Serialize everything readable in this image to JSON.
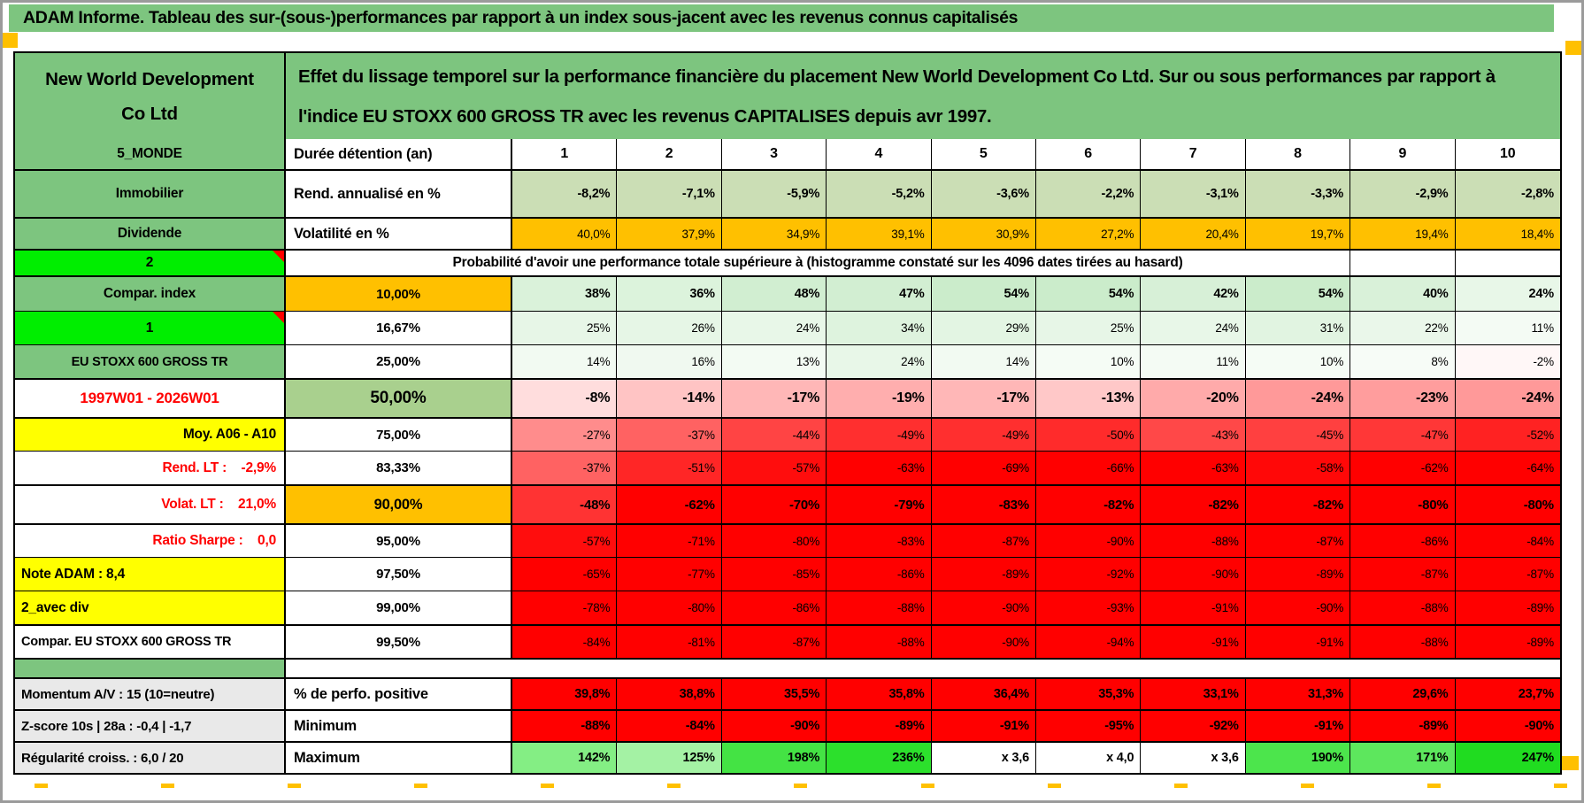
{
  "title_bar": {
    "text": "ADAM Informe. Tableau des sur-(sous-)performances par rapport à un index sous-jacent avec les revenus connus capitalisés"
  },
  "palette": {
    "band_green": "#7dc57f",
    "bright_green": "#00ee00",
    "orange": "#ffc000",
    "yellow": "#ffff00",
    "red": "#ff0000",
    "sage": "#cbdeb5",
    "grey_label": "#e9e9e9",
    "p50_green": "#a9d08e"
  },
  "header": {
    "company_line1": "New World Development",
    "company_line2": "Co Ltd",
    "description": "Effet du lissage temporel sur la performance financière du placement New World Development Co Ltd. Sur ou sous performances par rapport à l'indice EU STOXX 600 GROSS TR avec les revenus CAPITALISES depuis avr 1997."
  },
  "table": {
    "rows": [
      {
        "kind": "colhead",
        "label": "5_MONDE",
        "label_bg": "#7dc57f",
        "head": "Durée détention (an)",
        "cells": [
          "1",
          "2",
          "3",
          "4",
          "5",
          "6",
          "7",
          "8",
          "9",
          "10"
        ],
        "cell_colors": [
          "#ffffff",
          "#ffffff",
          "#ffffff",
          "#ffffff",
          "#ffffff",
          "#ffffff",
          "#ffffff",
          "#ffffff",
          "#ffffff",
          "#ffffff"
        ]
      },
      {
        "kind": "rend",
        "label": "Immobilier",
        "label_bg": "#7dc57f",
        "head": "Rend. annualisé en %",
        "cells": [
          "-8,2%",
          "-7,1%",
          "-5,9%",
          "-5,2%",
          "-3,6%",
          "-2,2%",
          "-3,1%",
          "-3,3%",
          "-2,9%",
          "-2,8%"
        ],
        "cell_colors": [
          "#cbdeb5",
          "#cbdeb5",
          "#cbdeb5",
          "#cbdeb5",
          "#cbdeb5",
          "#cbdeb5",
          "#cbdeb5",
          "#cbdeb5",
          "#cbdeb5",
          "#cbdeb5"
        ]
      },
      {
        "kind": "volat",
        "label": "Dividende",
        "label_bg": "#7dc57f",
        "head": "Volatilité en %",
        "cells": [
          "40,0%",
          "37,9%",
          "34,9%",
          "39,1%",
          "30,9%",
          "27,2%",
          "20,4%",
          "19,7%",
          "19,4%",
          "18,4%"
        ],
        "cell_colors": [
          "#ffc000",
          "#ffc000",
          "#ffc000",
          "#ffc000",
          "#ffc000",
          "#ffc000",
          "#ffc000",
          "#ffc000",
          "#ffc000",
          "#ffc000"
        ]
      },
      {
        "kind": "proba",
        "label": "2",
        "label_bg": "#00ee00",
        "corner": true,
        "merged_text": "Probabilité d'avoir une performance totale supérieure à (histogramme constaté sur les 4096 dates tirées au hasard)"
      },
      {
        "kind": "p10",
        "label": "Compar. index",
        "label_bg": "#7dc57f",
        "head": "10,00%",
        "head_bg": "#ffc000",
        "cells": [
          "38%",
          "36%",
          "48%",
          "47%",
          "54%",
          "54%",
          "42%",
          "54%",
          "40%",
          "24%"
        ],
        "cell_colors": [
          "#daf2da",
          "#dcf3dc",
          "#d1eed1",
          "#d2eed2",
          "#cbeccb",
          "#cbeccb",
          "#d7f0d7",
          "#cbeccb",
          "#d9f1d9",
          "#e8f7e8"
        ]
      },
      {
        "kind": "p1667",
        "label": "1",
        "label_bg": "#00ee00",
        "corner": true,
        "head": "16,67%",
        "cells": [
          "25%",
          "26%",
          "24%",
          "34%",
          "29%",
          "25%",
          "24%",
          "31%",
          "22%",
          "11%"
        ],
        "cell_colors": [
          "#e7f6e7",
          "#e6f6e6",
          "#e8f7e8",
          "#def3de",
          "#e3f5e3",
          "#e7f6e7",
          "#e8f7e8",
          "#e1f4e1",
          "#eaf7ea",
          "#f4fbf4"
        ]
      },
      {
        "kind": "p25",
        "label": "EU STOXX 600 GROSS TR",
        "label_bg": "#7dc57f",
        "head": "25,00%",
        "cells": [
          "14%",
          "16%",
          "13%",
          "24%",
          "14%",
          "10%",
          "11%",
          "10%",
          "8%",
          "-2%"
        ],
        "cell_colors": [
          "#f2faf2",
          "#f0f9f0",
          "#f3fbf3",
          "#e8f7e8",
          "#f2faf2",
          "#f5fcf5",
          "#f4fbf4",
          "#f5fcf5",
          "#f7fcf7",
          "#fff7f7"
        ]
      },
      {
        "kind": "p50",
        "label": "1997W01 - 2026W01",
        "label_fg": "#ff0000",
        "head": "50,00%",
        "head_bg": "#a9d08e",
        "cells": [
          "-8%",
          "-14%",
          "-17%",
          "-19%",
          "-17%",
          "-13%",
          "-20%",
          "-24%",
          "-23%",
          "-24%"
        ],
        "cell_colors": [
          "#ffdddd",
          "#ffc4c4",
          "#ffb7b7",
          "#ffaeae",
          "#ffb7b7",
          "#ffc8c8",
          "#ffaaaa",
          "#ff9999",
          "#ff9d9d",
          "#ff9999"
        ]
      },
      {
        "kind": "p75",
        "label": "Moy. A06 - A10",
        "label_bg": "#ffff00",
        "label_align": "right",
        "head": "75,00%",
        "cells": [
          "-27%",
          "-37%",
          "-44%",
          "-49%",
          "-49%",
          "-50%",
          "-43%",
          "-45%",
          "-47%",
          "-52%"
        ],
        "cell_colors": [
          "#ff8c8c",
          "#ff6262",
          "#ff4444",
          "#ff2f2f",
          "#ff2f2f",
          "#ff2b2b",
          "#ff4848",
          "#ff4040",
          "#ff3737",
          "#ff2222"
        ]
      },
      {
        "kind": "p8333",
        "label": "Rend. LT :    -2,9%",
        "label_fg": "#ff0000",
        "label_align": "right",
        "head": "83,33%",
        "cells": [
          "-37%",
          "-51%",
          "-57%",
          "-63%",
          "-69%",
          "-66%",
          "-63%",
          "-58%",
          "-62%",
          "-64%"
        ],
        "cell_colors": [
          "#ff6262",
          "#ff2626",
          "#ff0d0d",
          "#ff0000",
          "#ff0000",
          "#ff0000",
          "#ff0000",
          "#ff0808",
          "#ff0000",
          "#ff0000"
        ]
      },
      {
        "kind": "p90",
        "label": "Volat. LT :    21,0%",
        "label_fg": "#ff0000",
        "label_align": "right",
        "head": "90,00%",
        "head_bg": "#ffc000",
        "cells": [
          "-48%",
          "-62%",
          "-70%",
          "-79%",
          "-83%",
          "-82%",
          "-82%",
          "-82%",
          "-80%",
          "-80%"
        ],
        "cell_colors": [
          "#ff3333",
          "#ff0000",
          "#ff0000",
          "#ff0000",
          "#ff0000",
          "#ff0000",
          "#ff0000",
          "#ff0000",
          "#ff0000",
          "#ff0000"
        ]
      },
      {
        "kind": "p95",
        "label": "Ratio Sharpe :    0,0",
        "label_fg": "#ff0000",
        "label_align": "right",
        "head": "95,00%",
        "cells": [
          "-57%",
          "-71%",
          "-80%",
          "-83%",
          "-87%",
          "-90%",
          "-88%",
          "-87%",
          "-86%",
          "-84%"
        ],
        "cell_colors": [
          "#ff0d0d",
          "#ff0000",
          "#ff0000",
          "#ff0000",
          "#ff0000",
          "#ff0000",
          "#ff0000",
          "#ff0000",
          "#ff0000",
          "#ff0000"
        ]
      },
      {
        "kind": "p975",
        "label": "Note ADAM : 8,4",
        "label_bg": "#ffff00",
        "label_align": "left",
        "head": "97,50%",
        "cells": [
          "-65%",
          "-77%",
          "-85%",
          "-86%",
          "-89%",
          "-92%",
          "-90%",
          "-89%",
          "-87%",
          "-87%"
        ],
        "cell_colors": [
          "#ff0000",
          "#ff0000",
          "#ff0000",
          "#ff0000",
          "#ff0000",
          "#ff0000",
          "#ff0000",
          "#ff0000",
          "#ff0000",
          "#ff0000"
        ]
      },
      {
        "kind": "p99",
        "label": "2_avec div",
        "label_bg": "#ffff00",
        "label_align": "left",
        "head": "99,00%",
        "cells": [
          "-78%",
          "-80%",
          "-86%",
          "-88%",
          "-90%",
          "-93%",
          "-91%",
          "-90%",
          "-88%",
          "-89%"
        ],
        "cell_colors": [
          "#ff0000",
          "#ff0000",
          "#ff0000",
          "#ff0000",
          "#ff0000",
          "#ff0000",
          "#ff0000",
          "#ff0000",
          "#ff0000",
          "#ff0000"
        ]
      },
      {
        "kind": "p995",
        "label": "Compar. EU STOXX 600 GROSS TR",
        "label_align": "left",
        "head": "99,50%",
        "cells": [
          "-84%",
          "-81%",
          "-87%",
          "-88%",
          "-90%",
          "-94%",
          "-91%",
          "-91%",
          "-88%",
          "-89%"
        ],
        "cell_colors": [
          "#ff0000",
          "#ff0000",
          "#ff0000",
          "#ff0000",
          "#ff0000",
          "#ff0000",
          "#ff0000",
          "#ff0000",
          "#ff0000",
          "#ff0000"
        ]
      },
      {
        "kind": "sep",
        "label": "",
        "label_bg": "#7dc57f"
      },
      {
        "kind": "mom",
        "label": "Momentum A/V : 15 (10=neutre)",
        "label_bg": "#e9e9e9",
        "label_align": "left",
        "head": "% de perfo. positive",
        "cells": [
          "39,8%",
          "38,8%",
          "35,5%",
          "35,8%",
          "36,4%",
          "35,3%",
          "33,1%",
          "31,3%",
          "29,6%",
          "23,7%"
        ],
        "cell_colors": [
          "#ff0000",
          "#ff0000",
          "#ff0000",
          "#ff0000",
          "#ff0000",
          "#ff0000",
          "#ff0000",
          "#ff0000",
          "#ff0000",
          "#ff0000"
        ]
      },
      {
        "kind": "zsc",
        "label": "Z-score 10s | 28a : -0,4 | -1,7",
        "label_bg": "#e9e9e9",
        "label_align": "left",
        "head": "Minimum",
        "cells": [
          "-88%",
          "-84%",
          "-90%",
          "-89%",
          "-91%",
          "-95%",
          "-92%",
          "-91%",
          "-89%",
          "-90%"
        ],
        "cell_colors": [
          "#ff0000",
          "#ff0000",
          "#ff0000",
          "#ff0000",
          "#ff0000",
          "#ff0000",
          "#ff0000",
          "#ff0000",
          "#ff0000",
          "#ff0000"
        ]
      },
      {
        "kind": "reg",
        "label": "Régularité croiss. : 6,0 / 20",
        "label_bg": "#e9e9e9",
        "label_align": "left",
        "head": "Maximum",
        "cells": [
          "142%",
          "125%",
          "198%",
          "236%",
          "x 3,6",
          "x 4,0",
          "x 3,6",
          "190%",
          "171%",
          "247%"
        ],
        "cell_colors": [
          "#84ee84",
          "#a4f2a4",
          "#44e344",
          "#2ce02c",
          "#ffffff",
          "#ffffff",
          "#ffffff",
          "#4ce54c",
          "#5de75d",
          "#20dc20"
        ]
      }
    ]
  }
}
